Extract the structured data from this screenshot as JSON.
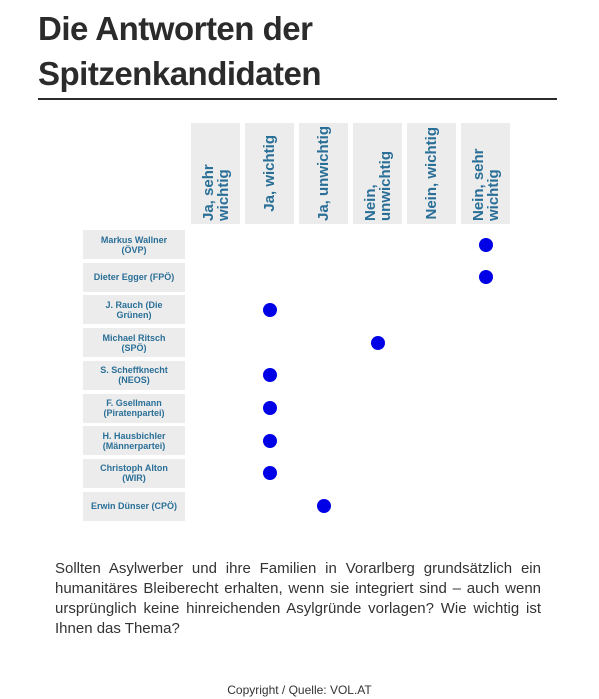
{
  "header": {
    "title": "Die Antworten der Spitzenkandidaten"
  },
  "columns": [
    "Ja, sehr wichtig",
    "Ja, wichtig",
    "Ja, unwichtig",
    "Nein, unwichtig",
    "Nein, wichtig",
    "Nein, sehr wichtig"
  ],
  "rows": [
    {
      "name": "Markus Wallner (ÖVP)",
      "answer": 5
    },
    {
      "name": "Dieter Egger (FPÖ)",
      "answer": 5
    },
    {
      "name": "J. Rauch (Die Grünen)",
      "answer": 1
    },
    {
      "name": "Michael Ritsch (SPÖ)",
      "answer": 3
    },
    {
      "name": "S. Scheffknecht (NEOS)",
      "answer": 1
    },
    {
      "name": "F. Gsellmann (Piratenpartei)",
      "answer": 1
    },
    {
      "name": "H. Hausbichler (Männerpartei)",
      "answer": 1
    },
    {
      "name": "Christoph Alton (WIR)",
      "answer": 1
    },
    {
      "name": "Erwin Dünser (CPÖ)",
      "answer": 2
    }
  ],
  "question": "Sollten Asylwerber und ihre Familien in Vorarlberg grundsätzlich ein humanitäres Bleiberecht erhalten, wenn sie integriert sind – auch wenn ursprünglich keine hinreichenden Asylgründe vorlagen? Wie wichtig ist Ihnen das Thema?",
  "footer": "Copyright / Quelle: VOL.AT"
}
